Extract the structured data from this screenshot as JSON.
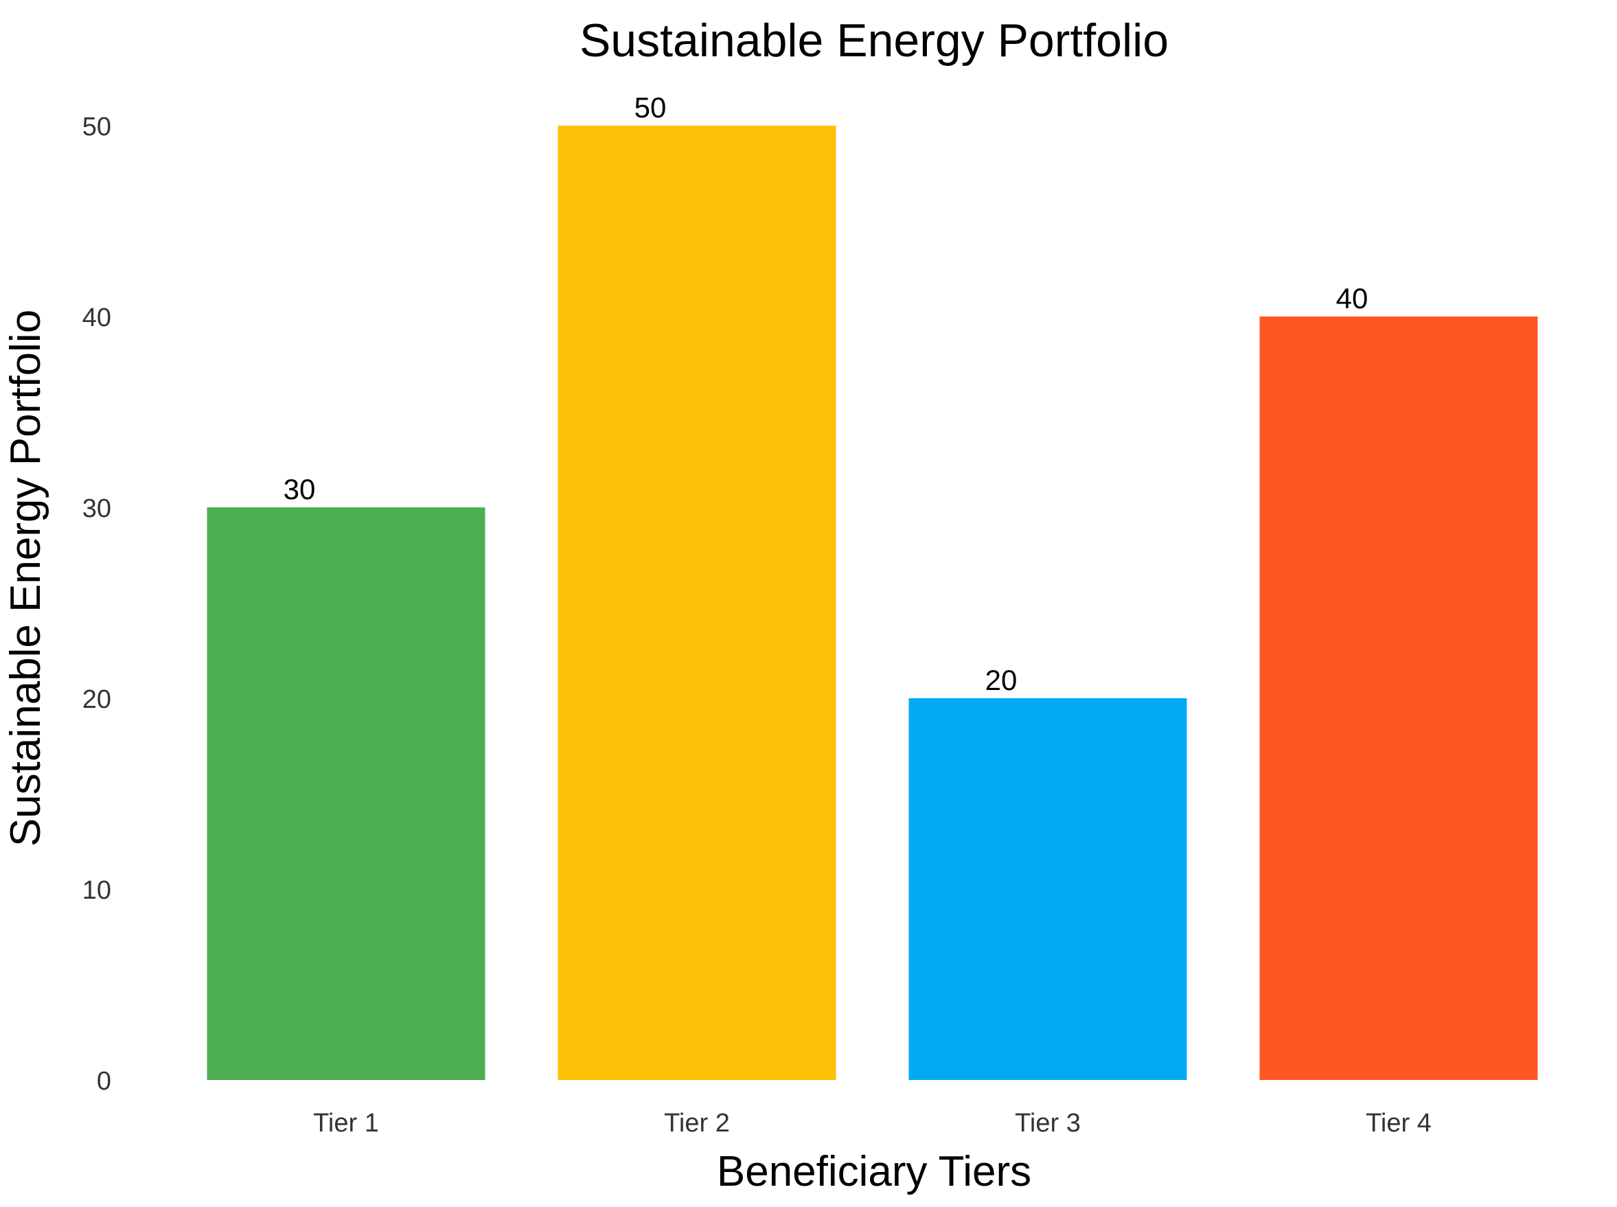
{
  "chart_data": {
    "type": "bar",
    "title": "Sustainable Energy Portfolio",
    "xlabel": "Beneficiary Tiers",
    "ylabel": "Sustainable Energy Portfolio",
    "categories": [
      "Tier 1",
      "Tier 2",
      "Tier 3",
      "Tier 4"
    ],
    "values": [
      30,
      50,
      20,
      40
    ],
    "data_labels": [
      "30",
      "50",
      "20",
      "40"
    ],
    "colors": [
      "#4caf50",
      "#ffc107",
      "#03a9f4",
      "#ff5722"
    ],
    "ylim": [
      0,
      50
    ],
    "yticks": [
      0,
      10,
      20,
      30,
      40,
      50
    ],
    "ytick_labels": [
      "0",
      "10",
      "20",
      "30",
      "40",
      "50"
    ],
    "grid": false,
    "legend": "none"
  }
}
